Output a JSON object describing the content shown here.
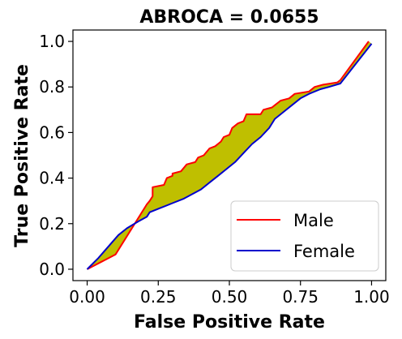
{
  "chart_data": {
    "type": "line",
    "title": "ABROCA = 0.0655",
    "xlabel": "False Positive Rate",
    "ylabel": "True Positive Rate",
    "xlim": [
      -0.05,
      1.05
    ],
    "ylim": [
      -0.05,
      1.05
    ],
    "xticks": [
      0.0,
      0.25,
      0.5,
      0.75,
      1.0
    ],
    "xtick_labels": [
      "0.00",
      "0.25",
      "0.50",
      "0.75",
      "1.00"
    ],
    "yticks": [
      0.0,
      0.2,
      0.4,
      0.6,
      0.8,
      1.0
    ],
    "ytick_labels": [
      "0.0",
      "0.2",
      "0.4",
      "0.6",
      "0.8",
      "1.0"
    ],
    "grid": false,
    "legend_position": "bottom-right",
    "fill_color": "#bfbf00",
    "series": [
      {
        "name": "Male",
        "color": "#ff0000",
        "points": [
          [
            0.0,
            0.0
          ],
          [
            0.1,
            0.065
          ],
          [
            0.21,
            0.285
          ],
          [
            0.22,
            0.3
          ],
          [
            0.23,
            0.32
          ],
          [
            0.23,
            0.36
          ],
          [
            0.27,
            0.37
          ],
          [
            0.28,
            0.4
          ],
          [
            0.3,
            0.41
          ],
          [
            0.3,
            0.42
          ],
          [
            0.33,
            0.43
          ],
          [
            0.35,
            0.46
          ],
          [
            0.38,
            0.47
          ],
          [
            0.39,
            0.49
          ],
          [
            0.41,
            0.5
          ],
          [
            0.43,
            0.53
          ],
          [
            0.45,
            0.54
          ],
          [
            0.47,
            0.56
          ],
          [
            0.48,
            0.58
          ],
          [
            0.5,
            0.59
          ],
          [
            0.51,
            0.62
          ],
          [
            0.53,
            0.64
          ],
          [
            0.55,
            0.65
          ],
          [
            0.56,
            0.68
          ],
          [
            0.61,
            0.68
          ],
          [
            0.62,
            0.7
          ],
          [
            0.65,
            0.71
          ],
          [
            0.66,
            0.72
          ],
          [
            0.68,
            0.74
          ],
          [
            0.71,
            0.75
          ],
          [
            0.73,
            0.77
          ],
          [
            0.78,
            0.78
          ],
          [
            0.8,
            0.8
          ],
          [
            0.83,
            0.81
          ],
          [
            0.88,
            0.82
          ],
          [
            0.89,
            0.83
          ],
          [
            0.99,
            1.0
          ]
        ]
      },
      {
        "name": "Female",
        "color": "#0000cc",
        "points": [
          [
            0.0,
            0.0
          ],
          [
            0.04,
            0.05
          ],
          [
            0.11,
            0.15
          ],
          [
            0.14,
            0.18
          ],
          [
            0.18,
            0.21
          ],
          [
            0.21,
            0.23
          ],
          [
            0.22,
            0.25
          ],
          [
            0.26,
            0.27
          ],
          [
            0.3,
            0.29
          ],
          [
            0.34,
            0.31
          ],
          [
            0.37,
            0.33
          ],
          [
            0.4,
            0.35
          ],
          [
            0.43,
            0.38
          ],
          [
            0.46,
            0.41
          ],
          [
            0.49,
            0.44
          ],
          [
            0.52,
            0.47
          ],
          [
            0.55,
            0.51
          ],
          [
            0.58,
            0.55
          ],
          [
            0.61,
            0.58
          ],
          [
            0.64,
            0.62
          ],
          [
            0.66,
            0.66
          ],
          [
            0.69,
            0.69
          ],
          [
            0.72,
            0.72
          ],
          [
            0.75,
            0.75
          ],
          [
            0.78,
            0.77
          ],
          [
            0.82,
            0.79
          ],
          [
            0.85,
            0.8
          ],
          [
            0.89,
            0.815
          ],
          [
            1.0,
            0.99
          ]
        ]
      }
    ]
  }
}
